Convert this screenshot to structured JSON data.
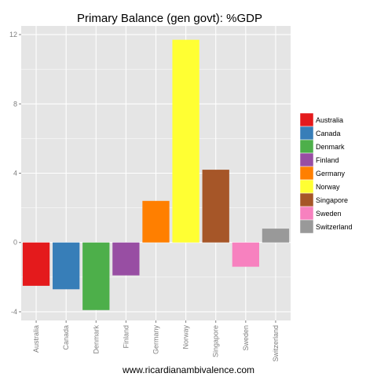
{
  "chart_data": {
    "type": "bar",
    "title": "Primary Balance (gen govt): %GDP",
    "xlabel": "",
    "ylabel": "",
    "categories": [
      "Australia",
      "Canada",
      "Denmark",
      "Finland",
      "Germany",
      "Norway",
      "Singapore",
      "Sweden",
      "Switzerland"
    ],
    "values": [
      -2.5,
      -2.7,
      -3.9,
      -1.9,
      2.4,
      11.7,
      4.2,
      -1.4,
      0.8
    ],
    "colors": [
      "#e41a1c",
      "#377eb8",
      "#4daf4a",
      "#984ea3",
      "#ff7f00",
      "#ffff33",
      "#a65628",
      "#f781bf",
      "#999999"
    ],
    "ylim": [
      -4.5,
      12.5
    ],
    "yticks": [
      "-4",
      "0",
      "4",
      "8",
      "12"
    ],
    "grid": true,
    "legend_position": "right",
    "legend": [
      "Australia",
      "Canada",
      "Denmark",
      "Finland",
      "Germany",
      "Norway",
      "Singapore",
      "Sweden",
      "Switzerland"
    ],
    "panel_background": "#e5e5e5",
    "grid_color": "#ffffff"
  },
  "credit": "www.ricardianambivalence.com"
}
